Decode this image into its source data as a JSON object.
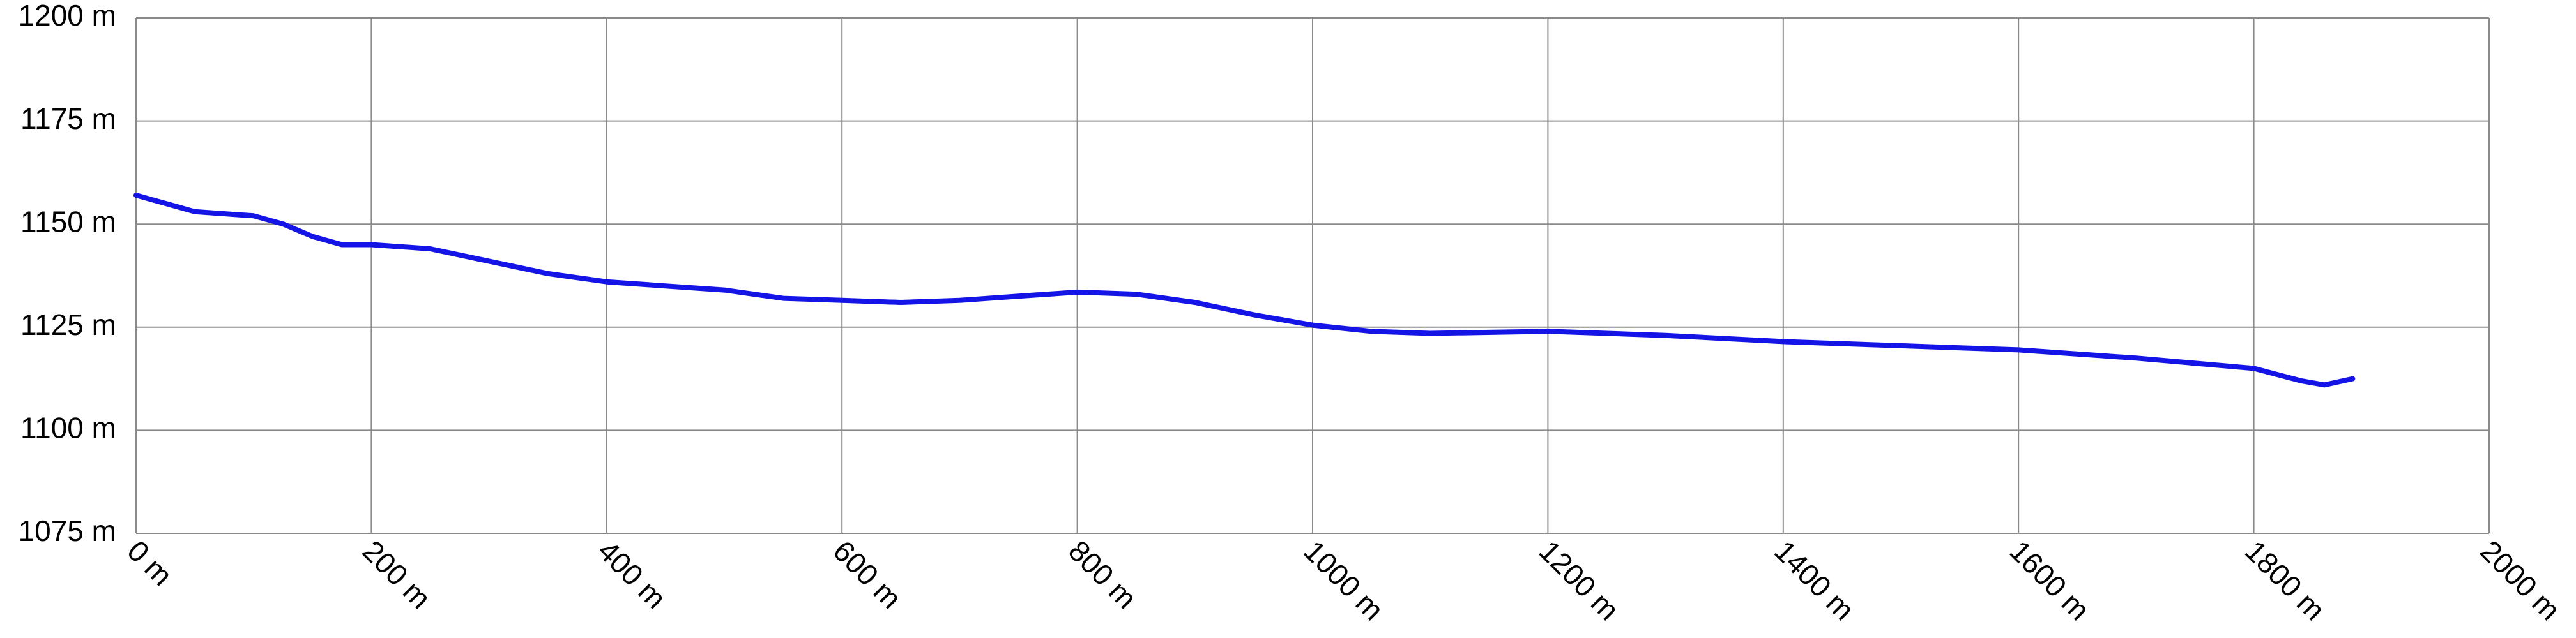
{
  "chart_data": {
    "type": "line",
    "x": [
      0,
      25,
      50,
      100,
      125,
      150,
      175,
      200,
      250,
      300,
      350,
      400,
      450,
      500,
      550,
      600,
      650,
      700,
      750,
      800,
      850,
      900,
      950,
      1000,
      1050,
      1100,
      1200,
      1300,
      1400,
      1500,
      1600,
      1700,
      1800,
      1840,
      1860,
      1884
    ],
    "series": [
      {
        "color": "#1414e6",
        "values": [
          1157,
          1155,
          1153,
          1152,
          1150,
          1147,
          1145,
          1145,
          1144,
          1141,
          1138,
          1136,
          1135,
          1134,
          1132,
          1131.5,
          1131,
          1131.5,
          1132.5,
          1133.5,
          1133,
          1131,
          1128,
          1125.5,
          1124,
          1123.5,
          1124,
          1123,
          1121.5,
          1120.5,
          1119.5,
          1117.5,
          1115,
          1112,
          1111,
          1112.5
        ]
      }
    ],
    "xlim": [
      0,
      2000
    ],
    "xticks": [
      {
        "value": 0,
        "label": "0 m"
      },
      {
        "value": 200,
        "label": "200 m"
      },
      {
        "value": 400,
        "label": "400 m"
      },
      {
        "value": 600,
        "label": "600 m"
      },
      {
        "value": 800,
        "label": "800 m"
      },
      {
        "value": 1000,
        "label": "1000 m"
      },
      {
        "value": 1200,
        "label": "1200 m"
      },
      {
        "value": 1400,
        "label": "1400 m"
      },
      {
        "value": 1600,
        "label": "1600 m"
      },
      {
        "value": 1800,
        "label": "1800 m"
      },
      {
        "value": 2000,
        "label": "2000 m"
      }
    ],
    "ylim": [
      1075,
      1200
    ],
    "yticks": [
      {
        "value": 1075,
        "label": "1075 m"
      },
      {
        "value": 1100,
        "label": "1100 m"
      },
      {
        "value": 1125,
        "label": "1125 m"
      },
      {
        "value": 1150,
        "label": "1150 m"
      },
      {
        "value": 1175,
        "label": "1175 m"
      },
      {
        "value": 1200,
        "label": "1200 m"
      }
    ],
    "grid": true
  }
}
